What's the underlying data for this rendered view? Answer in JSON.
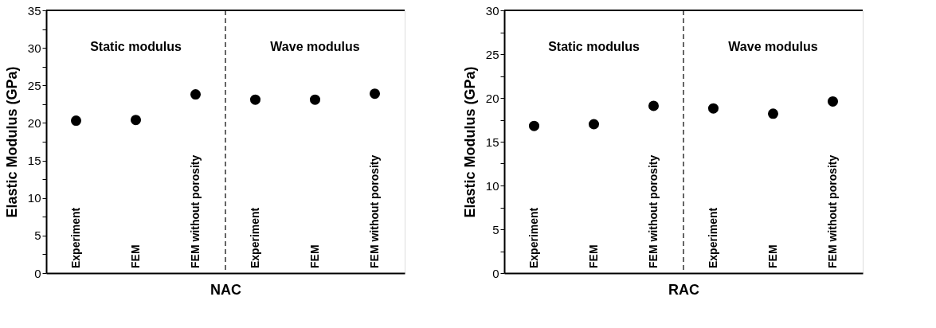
{
  "chart_data": [
    {
      "type": "scatter",
      "xlabel": "NAC",
      "ylabel": "Elastic Modulus (GPa)",
      "categories": [
        "Experiment",
        "FEM",
        "FEM without porosity",
        "Experiment",
        "FEM",
        "FEM without porosity"
      ],
      "series": [
        {
          "color": "#000000",
          "values": [
            20.3,
            20.4,
            23.8,
            23.1,
            23.1,
            23.9
          ]
        }
      ],
      "ylim": [
        0,
        35
      ],
      "yticks": [
        0,
        {
          "value": 2.5,
          "label": null
        },
        5,
        {
          "value": 7.5,
          "label": null
        },
        10,
        {
          "value": 12.5,
          "label": null
        },
        15,
        {
          "value": 17.5,
          "label": null
        },
        20,
        {
          "value": 22.5,
          "label": null
        },
        25,
        {
          "value": 27.5,
          "label": null
        },
        30,
        {
          "value": 32.5,
          "label": null
        },
        35
      ],
      "grid": false,
      "annotations": [
        "Static modulus",
        "Wave modulus"
      ]
    },
    {
      "type": "scatter",
      "xlabel": "RAC",
      "ylabel": "Elastic Modulus (GPa)",
      "categories": [
        "Experiment",
        "FEM",
        "FEM without porosity",
        "Experiment",
        "FEM",
        "FEM without porosity"
      ],
      "series": [
        {
          "color": "#000000",
          "values": [
            16.8,
            17.0,
            19.1,
            18.8,
            18.2,
            19.6
          ]
        }
      ],
      "ylim": [
        0,
        30
      ],
      "yticks": [
        0,
        {
          "value": 2.5,
          "label": null
        },
        5,
        {
          "value": 7.5,
          "label": null
        },
        10,
        {
          "value": 12.5,
          "label": null
        },
        15,
        {
          "value": 17.5,
          "label": null
        },
        20,
        {
          "value": 22.5,
          "label": null
        },
        25,
        {
          "value": 27.5,
          "label": null
        },
        30
      ],
      "grid": false,
      "annotations": [
        "Static modulus",
        "Wave modulus"
      ]
    }
  ]
}
